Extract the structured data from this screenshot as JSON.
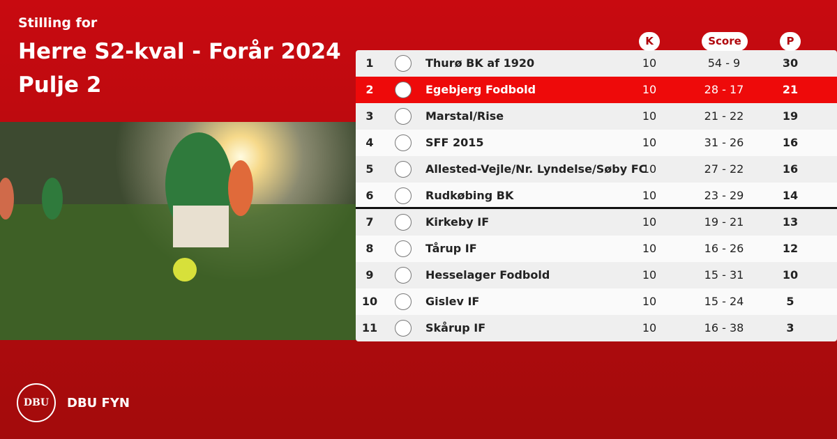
{
  "header": {
    "kicker": "Stilling for",
    "title_line1": "Herre S2-kval - Forår 2024",
    "title_line2": "Pulje 2"
  },
  "table": {
    "columns": [
      "K",
      "Score",
      "P"
    ],
    "rows": [
      {
        "position": 1,
        "team": "Thurø BK af 1920",
        "matches": 10,
        "score": "54 - 9",
        "points": 30
      },
      {
        "position": 2,
        "team": "Egebjerg Fodbold",
        "matches": 10,
        "score": "28 - 17",
        "points": 21
      },
      {
        "position": 3,
        "team": "Marstal/Rise",
        "matches": 10,
        "score": "21 - 22",
        "points": 19
      },
      {
        "position": 4,
        "team": "SFF 2015",
        "matches": 10,
        "score": "31 - 26",
        "points": 16
      },
      {
        "position": 5,
        "team": "Allested-Vejle/Nr. Lyndelse/Søby FC",
        "matches": 10,
        "score": "27 - 22",
        "points": 16
      },
      {
        "position": 6,
        "team": "Rudkøbing BK",
        "matches": 10,
        "score": "23 - 29",
        "points": 14
      },
      {
        "position": 7,
        "team": "Kirkeby IF",
        "matches": 10,
        "score": "19 - 21",
        "points": 13
      },
      {
        "position": 8,
        "team": "Tårup IF",
        "matches": 10,
        "score": "16 - 26",
        "points": 12
      },
      {
        "position": 9,
        "team": "Hesselager Fodbold",
        "matches": 10,
        "score": "15 - 31",
        "points": 10
      },
      {
        "position": 10,
        "team": "Gislev IF",
        "matches": 10,
        "score": "15 - 24",
        "points": 5
      },
      {
        "position": 11,
        "team": "Skårup IF",
        "matches": 10,
        "score": "16 - 38",
        "points": 3
      }
    ]
  },
  "footer": {
    "logo": "DBU",
    "brand": "DBU FYN"
  }
}
